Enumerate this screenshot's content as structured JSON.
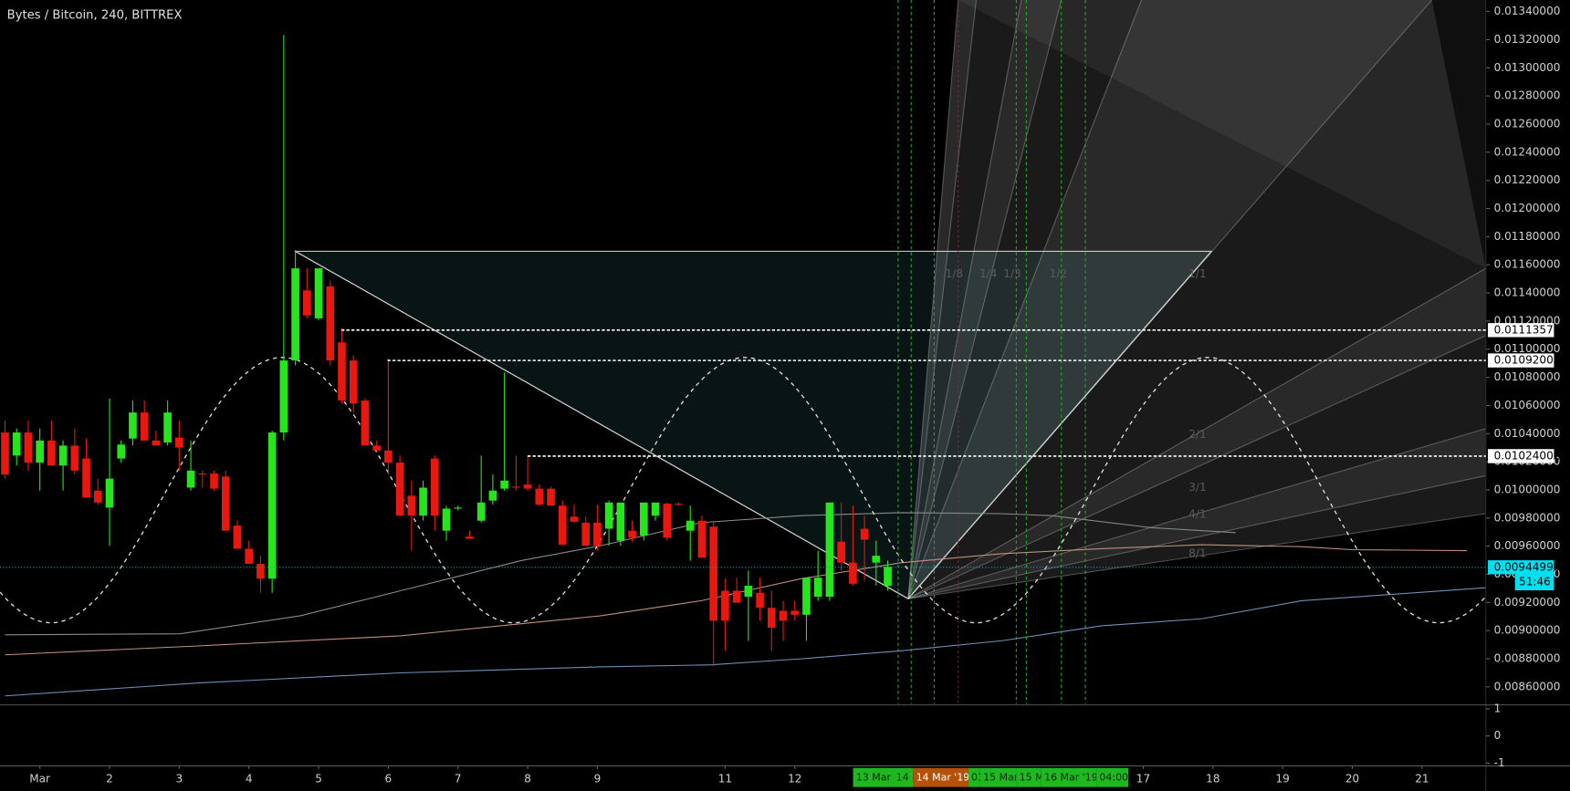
{
  "chart_data": {
    "type": "candlestick",
    "title": "Bytes / Bitcoin, 240, BITTREX",
    "up_color": "#26e51c",
    "down_color": "#e8170f",
    "open": [
      0.010408,
      0.010244,
      0.010408,
      0.010194,
      0.010351,
      0.010173,
      0.010315,
      0.010223,
      0.009995,
      0.009874,
      0.010223,
      0.010365,
      0.01055,
      0.010351,
      0.010337,
      0.010372,
      0.010016,
      0.010116,
      0.010116,
      0.010095,
      0.009746,
      0.009582,
      0.009475,
      0.009369,
      0.010408,
      0.01092,
      0.011418,
      0.011219,
      0.011447,
      0.011048,
      0.01092,
      0.010635,
      0.010315,
      0.01028,
      0.010194,
      0.009959,
      0.009817,
      0.010223,
      0.00971,
      0.009867,
      0.009668,
      0.009781,
      0.009924,
      0.010009,
      0.010023,
      0.010038,
      0.010009,
      0.010009,
      0.009888,
      0.00981,
      0.009767,
      0.009767,
      0.009724,
      0.009639,
      0.00971,
      0.009675,
      0.009817,
      0.009902,
      0.009902,
      0.00971,
      0.009781,
      0.009739,
      0.009283,
      0.009283,
      0.009241,
      0.009269,
      0.009162,
      0.009141,
      0.009141,
      0.009112,
      0.009241,
      0.009241,
      0.009632,
      0.009483,
      0.009724,
      0.009483,
      0.009319
    ],
    "high": [
      0.010493,
      0.010436,
      0.010493,
      0.010436,
      0.010493,
      0.010351,
      0.010436,
      0.010365,
      0.01008,
      0.01065,
      0.010351,
      0.010635,
      0.010635,
      0.010422,
      0.010635,
      0.010493,
      0.010351,
      0.010137,
      0.010137,
      0.010137,
      0.009781,
      0.009639,
      0.009532,
      0.010422,
      0.013233,
      0.011703,
      0.011575,
      0.011575,
      0.01149,
      0.011148,
      0.010956,
      0.01065,
      0.010351,
      0.010934,
      0.010244,
      0.010066,
      0.010066,
      0.010244,
      0.009888,
      0.009888,
      0.00971,
      0.010244,
      0.010109,
      0.010835,
      0.010244,
      0.010244,
      0.010038,
      0.010023,
      0.009924,
      0.009895,
      0.00981,
      0.009895,
      0.009924,
      0.00991,
      0.009781,
      0.00991,
      0.00991,
      0.00991,
      0.00991,
      0.009888,
      0.009817,
      0.009781,
      0.009369,
      0.009376,
      0.009426,
      0.009376,
      0.009283,
      0.009212,
      0.009212,
      0.009376,
      0.009568,
      0.00991,
      0.00991,
      0.009888,
      0.009817,
      0.009639,
      0.009497
    ],
    "low": [
      0.01008,
      0.010173,
      0.010137,
      0.009995,
      0.010173,
      0.009995,
      0.010109,
      0.009945,
      0.009895,
      0.009603,
      0.010194,
      0.010315,
      0.010351,
      0.010315,
      0.010315,
      0.010137,
      0.009995,
      0.010016,
      0.009995,
      0.00971,
      0.009582,
      0.009475,
      0.009269,
      0.009269,
      0.010351,
      0.010885,
      0.011219,
      0.011205,
      0.010885,
      0.010614,
      0.01055,
      0.010315,
      0.01028,
      0.010109,
      0.009817,
      0.009568,
      0.009781,
      0.00971,
      0.009639,
      0.009853,
      0.009653,
      0.009767,
      0.009895,
      0.009995,
      0.009995,
      0.009995,
      0.009888,
      0.009888,
      0.009611,
      0.009767,
      0.009603,
      0.009568,
      0.009603,
      0.009603,
      0.009632,
      0.009639,
      0.009781,
      0.009639,
      0.009888,
      0.009497,
      0.009518,
      0.008749,
      0.008856,
      0.009198,
      0.008927,
      0.00907,
      0.008856,
      0.008927,
      0.00907,
      0.008927,
      0.009212,
      0.009212,
      0.009426,
      0.009319,
      0.009354,
      0.009319,
      0.009283
    ],
    "close": [
      0.010109,
      0.010408,
      0.010194,
      0.010351,
      0.010173,
      0.010315,
      0.010137,
      0.009945,
      0.00991,
      0.01008,
      0.010322,
      0.01055,
      0.010351,
      0.010315,
      0.01055,
      0.010301,
      0.010137,
      0.010109,
      0.010009,
      0.00971,
      0.009582,
      0.009475,
      0.009369,
      0.010408,
      0.01092,
      0.011575,
      0.01124,
      0.011575,
      0.01092,
      0.010635,
      0.010614,
      0.010315,
      0.01028,
      0.010194,
      0.009817,
      0.009817,
      0.010016,
      0.009817,
      0.009867,
      0.009874,
      0.009653,
      0.00991,
      0.009995,
      0.010066,
      0.010016,
      0.010009,
      0.009895,
      0.009888,
      0.009611,
      0.009774,
      0.009603,
      0.009603,
      0.00991,
      0.00991,
      0.00966,
      0.00991,
      0.00991,
      0.00966,
      0.009895,
      0.009781,
      0.009518,
      0.00907,
      0.00907,
      0.009198,
      0.009319,
      0.009162,
      0.00902,
      0.00907,
      0.009112,
      0.009376,
      0.009376,
      0.00991,
      0.009483,
      0.009333,
      0.009646,
      0.009532,
      0.009454
    ],
    "xlim": [
      -0.431,
      127.5
    ],
    "xticks": [
      {
        "value": 3,
        "label": "Mar"
      },
      {
        "value": 9,
        "label": "2"
      },
      {
        "value": 15,
        "label": "3"
      },
      {
        "value": 21,
        "label": "4"
      },
      {
        "value": 27,
        "label": "5"
      },
      {
        "value": 33,
        "label": "6"
      },
      {
        "value": 39,
        "label": "7"
      },
      {
        "value": 45,
        "label": "8"
      },
      {
        "value": 51,
        "label": "9"
      },
      {
        "value": 62,
        "label": "11"
      },
      {
        "value": 68,
        "label": "12"
      },
      {
        "value": 98,
        "label": "17"
      },
      {
        "value": 104,
        "label": "18"
      },
      {
        "value": 110,
        "label": "19"
      },
      {
        "value": 116,
        "label": "20"
      },
      {
        "value": 122,
        "label": "21"
      }
    ],
    "ylim": [
      0.008479,
      0.013482
    ],
    "yticks": [
      {
        "value": 0.0086,
        "label": "0.00860000"
      },
      {
        "value": 0.0088,
        "label": "0.00880000"
      },
      {
        "value": 0.009,
        "label": "0.00900000"
      },
      {
        "value": 0.0092,
        "label": "0.00920000"
      },
      {
        "value": 0.0094,
        "label": "0.00940000"
      },
      {
        "value": 0.0096,
        "label": "0.00960000"
      },
      {
        "value": 0.0098,
        "label": "0.00980000"
      },
      {
        "value": 0.01,
        "label": "0.01000000"
      },
      {
        "value": 0.0102,
        "label": "0.01020000"
      },
      {
        "value": 0.0104,
        "label": "0.01040000"
      },
      {
        "value": 0.0106,
        "label": "0.01060000"
      },
      {
        "value": 0.0108,
        "label": "0.01080000"
      },
      {
        "value": 0.011,
        "label": "0.01100000"
      },
      {
        "value": 0.0112,
        "label": "0.01120000"
      },
      {
        "value": 0.0114,
        "label": "0.01140000"
      },
      {
        "value": 0.0116,
        "label": "0.01160000"
      },
      {
        "value": 0.0118,
        "label": "0.01180000"
      },
      {
        "value": 0.012,
        "label": "0.01200000"
      },
      {
        "value": 0.0122,
        "label": "0.01220000"
      },
      {
        "value": 0.0124,
        "label": "0.01240000"
      },
      {
        "value": 0.0126,
        "label": "0.01260000"
      },
      {
        "value": 0.0128,
        "label": "0.01280000"
      },
      {
        "value": 0.013,
        "label": "0.01300000"
      },
      {
        "value": 0.0132,
        "label": "0.01320000"
      },
      {
        "value": 0.0134,
        "label": "0.01340000"
      }
    ],
    "levels": [
      0.01113574,
      {
        "value": 0.01092,
        "label": "0.01092000"
      },
      0.01024002
    ],
    "last_price": 0.00944998,
    "countdown": "51:46",
    "indicator_ylim": [
      -1.11,
      1.11
    ],
    "indicator_yticks": [
      1,
      0,
      -1
    ],
    "date_tags": [
      "13 Mar",
      "14 M",
      "14 Mar '19",
      "01:",
      "15 Mar",
      "15 M",
      "16 Mar '19",
      "04:00"
    ],
    "gann_labels": [
      "1/8",
      "1/4",
      "1/3",
      "1/2",
      "1/1",
      "2/1",
      "3/1",
      "4/1",
      "8/1"
    ]
  }
}
